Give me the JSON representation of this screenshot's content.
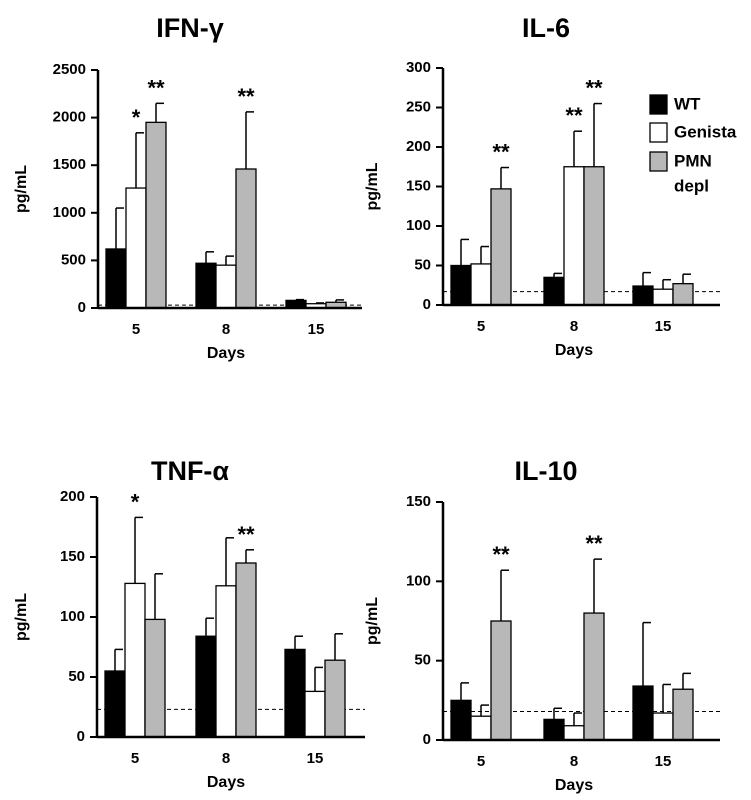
{
  "chart_data": [
    {
      "type": "bar",
      "title": "IFN-γ",
      "ylabel": "pg/mL",
      "xlabel": "Days",
      "categories": [
        "5",
        "8",
        "15"
      ],
      "ylim": [
        0,
        2500
      ],
      "yticks": [
        "0",
        "500",
        "1000",
        "1500",
        "2000",
        "2500"
      ],
      "baseline": 30,
      "series": [
        {
          "name": "WT",
          "color": "#000000",
          "values": [
            620,
            470,
            80
          ],
          "errors": [
            430,
            120,
            8
          ]
        },
        {
          "name": "Genista",
          "color": "#ffffff",
          "values": [
            1260,
            450,
            45
          ],
          "errors": [
            580,
            95,
            8
          ]
        },
        {
          "name": "PMN depl",
          "color": "#b8b8b8",
          "values": [
            1950,
            1460,
            60
          ],
          "errors": [
            200,
            600,
            25
          ]
        }
      ],
      "significance": [
        {
          "category": "5",
          "series": "Genista",
          "label": "*"
        },
        {
          "category": "5",
          "series": "PMN depl",
          "label": "**"
        },
        {
          "category": "8",
          "series": "PMN depl",
          "label": "**"
        }
      ]
    },
    {
      "type": "bar",
      "title": "IL-6",
      "ylabel": "pg/mL",
      "xlabel": "Days",
      "categories": [
        "5",
        "8",
        "15"
      ],
      "ylim": [
        0,
        300
      ],
      "yticks": [
        "0",
        "50",
        "100",
        "150",
        "200",
        "250",
        "300"
      ],
      "baseline": 17,
      "series": [
        {
          "name": "WT",
          "color": "#000000",
          "values": [
            50,
            35,
            24
          ],
          "errors": [
            33,
            5,
            17
          ]
        },
        {
          "name": "Genista",
          "color": "#ffffff",
          "values": [
            52,
            175,
            20
          ],
          "errors": [
            22,
            45,
            12
          ]
        },
        {
          "name": "PMN depl",
          "color": "#b8b8b8",
          "values": [
            147,
            175,
            27
          ],
          "errors": [
            27,
            80,
            12
          ]
        }
      ],
      "significance": [
        {
          "category": "5",
          "series": "PMN depl",
          "label": "**"
        },
        {
          "category": "8",
          "series": "Genista",
          "label": "**"
        },
        {
          "category": "8",
          "series": "PMN depl",
          "label": "**"
        }
      ],
      "legend": {
        "position": "top-right",
        "entries": [
          "WT",
          "Genista",
          "PMN",
          "depl"
        ]
      }
    },
    {
      "type": "bar",
      "title": "TNF-α",
      "ylabel": "pg/mL",
      "xlabel": "Days",
      "categories": [
        "5",
        "8",
        "15"
      ],
      "ylim": [
        0,
        200
      ],
      "yticks": [
        "0",
        "50",
        "100",
        "150",
        "200"
      ],
      "baseline": 23,
      "series": [
        {
          "name": "WT",
          "color": "#000000",
          "values": [
            55,
            84,
            73
          ],
          "errors": [
            18,
            15,
            11
          ]
        },
        {
          "name": "Genista",
          "color": "#ffffff",
          "values": [
            128,
            126,
            38
          ],
          "errors": [
            55,
            40,
            20
          ]
        },
        {
          "name": "PMN depl",
          "color": "#b8b8b8",
          "values": [
            98,
            145,
            64
          ],
          "errors": [
            38,
            11,
            22
          ]
        }
      ],
      "significance": [
        {
          "category": "5",
          "series": "Genista",
          "label": "*"
        },
        {
          "category": "8",
          "series": "PMN depl",
          "label": "**"
        }
      ]
    },
    {
      "type": "bar",
      "title": "IL-10",
      "ylabel": "pg/mL",
      "xlabel": "Days",
      "categories": [
        "5",
        "8",
        "15"
      ],
      "ylim": [
        0,
        150
      ],
      "yticks": [
        "0",
        "50",
        "100",
        "150"
      ],
      "baseline": 18,
      "series": [
        {
          "name": "WT",
          "color": "#000000",
          "values": [
            25,
            13,
            34
          ],
          "errors": [
            11,
            7,
            40
          ]
        },
        {
          "name": "Genista",
          "color": "#ffffff",
          "values": [
            15,
            9,
            17
          ],
          "errors": [
            7,
            8,
            18
          ]
        },
        {
          "name": "PMN depl",
          "color": "#b8b8b8",
          "values": [
            75,
            80,
            32
          ],
          "errors": [
            32,
            34,
            10
          ]
        }
      ],
      "significance": [
        {
          "category": "5",
          "series": "PMN depl",
          "label": "**"
        },
        {
          "category": "8",
          "series": "PMN depl",
          "label": "**"
        }
      ]
    }
  ]
}
